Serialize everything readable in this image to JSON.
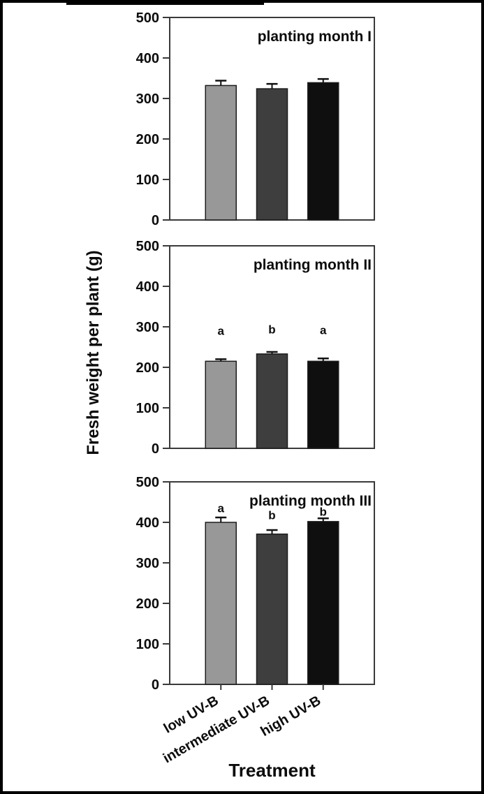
{
  "chart_data": {
    "type": "bar",
    "title": "",
    "xlabel": "Treatment",
    "ylabel": "Fresh weight per plant (g)",
    "categories": [
      "low UV-B",
      "intermediate UV-B",
      "high UV-B"
    ],
    "bar_colors": [
      "#989898",
      "#3e3e3e",
      "#0f0f0f"
    ],
    "ylim": [
      0,
      500
    ],
    "yticks": [
      0,
      100,
      200,
      300,
      400,
      500
    ],
    "grid": false,
    "legend": "none",
    "error_bars": true,
    "panels": [
      {
        "title": "planting month I",
        "values": [
          332,
          324,
          339
        ],
        "errors": [
          12,
          12,
          9
        ],
        "sig_letters": [
          "",
          "",
          ""
        ],
        "sig_letter_heights": []
      },
      {
        "title": "planting month II",
        "values": [
          215,
          233,
          215
        ],
        "errors": [
          5,
          5,
          7
        ],
        "sig_letters": [
          "a",
          "b",
          "a"
        ],
        "sig_letter_heights": [
          280,
          284,
          282
        ]
      },
      {
        "title": "planting month III",
        "values": [
          400,
          371,
          402
        ],
        "errors": [
          12,
          10,
          8
        ],
        "sig_letters": [
          "a",
          "b",
          "b"
        ],
        "sig_letter_heights": [
          425,
          408,
          416
        ]
      }
    ]
  }
}
